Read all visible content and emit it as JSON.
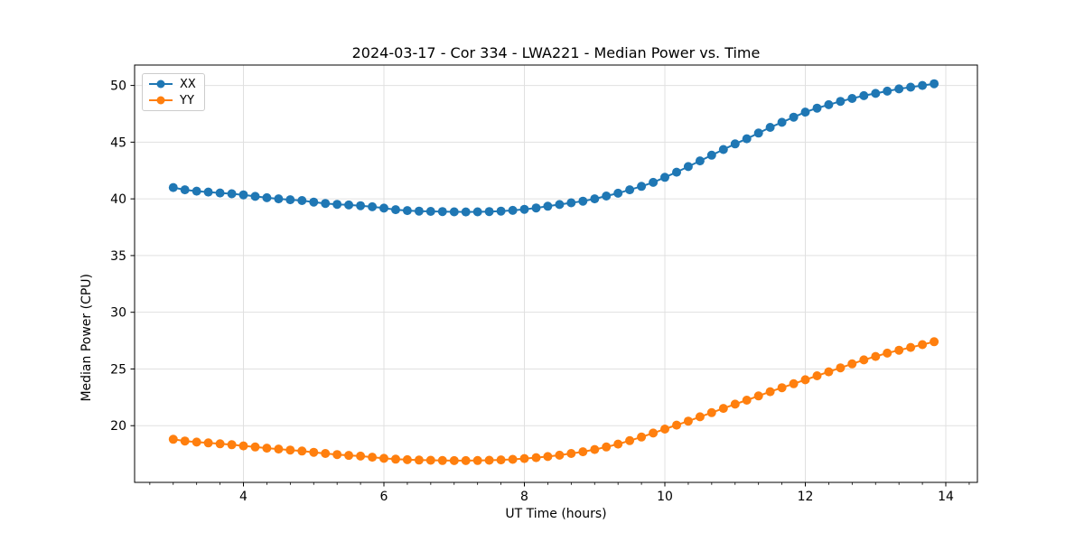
{
  "chart_data": {
    "type": "line",
    "title": "2024-03-17 - Cor 334 - LWA221 - Median Power vs. Time",
    "xlabel": "UT Time (hours)",
    "ylabel": "Median Power (CPU)",
    "xlim": [
      2.45,
      14.45
    ],
    "ylim": [
      15.0,
      51.8
    ],
    "x_ticks": [
      4,
      6,
      8,
      10,
      12,
      14
    ],
    "y_ticks": [
      20,
      25,
      30,
      35,
      40,
      45,
      50
    ],
    "x_minor_tick_step": 0.3333,
    "grid": true,
    "legend_position": "upper-left",
    "grid_color": "#e0e0e0",
    "x": [
      3.0,
      3.1667,
      3.3333,
      3.5,
      3.6667,
      3.8333,
      4.0,
      4.1667,
      4.3333,
      4.5,
      4.6667,
      4.8333,
      5.0,
      5.1667,
      5.3333,
      5.5,
      5.6667,
      5.8333,
      6.0,
      6.1667,
      6.3333,
      6.5,
      6.6667,
      6.8333,
      7.0,
      7.1667,
      7.3333,
      7.5,
      7.6667,
      7.8333,
      8.0,
      8.1667,
      8.3333,
      8.5,
      8.6667,
      8.8333,
      9.0,
      9.1667,
      9.3333,
      9.5,
      9.6667,
      9.8333,
      10.0,
      10.1667,
      10.3333,
      10.5,
      10.6667,
      10.8333,
      11.0,
      11.1667,
      11.3333,
      11.5,
      11.6667,
      11.8333,
      12.0,
      12.1667,
      12.3333,
      12.5,
      12.6667,
      12.8333,
      13.0,
      13.1667,
      13.3333,
      13.5,
      13.6667,
      13.8333
    ],
    "series": [
      {
        "name": "XX",
        "color": "#1f77b4",
        "values": [
          41.0,
          40.8,
          40.68,
          40.6,
          40.52,
          40.45,
          40.35,
          40.22,
          40.1,
          40.0,
          39.92,
          39.85,
          39.72,
          39.6,
          39.52,
          39.46,
          39.4,
          39.3,
          39.18,
          39.05,
          38.97,
          38.92,
          38.9,
          38.88,
          38.86,
          38.85,
          38.86,
          38.88,
          38.92,
          38.98,
          39.08,
          39.2,
          39.35,
          39.5,
          39.65,
          39.8,
          40.0,
          40.25,
          40.5,
          40.8,
          41.1,
          41.45,
          41.9,
          42.35,
          42.85,
          43.35,
          43.85,
          44.35,
          44.85,
          45.3,
          45.8,
          46.3,
          46.75,
          47.2,
          47.65,
          48.0,
          48.3,
          48.6,
          48.85,
          49.1,
          49.3,
          49.5,
          49.7,
          49.85,
          50.0,
          50.15
        ]
      },
      {
        "name": "YY",
        "color": "#ff7f0e",
        "values": [
          18.8,
          18.65,
          18.55,
          18.48,
          18.4,
          18.32,
          18.22,
          18.12,
          18.02,
          17.94,
          17.85,
          17.76,
          17.65,
          17.55,
          17.45,
          17.38,
          17.32,
          17.22,
          17.12,
          17.05,
          17.0,
          16.97,
          16.95,
          16.93,
          16.92,
          16.92,
          16.93,
          16.95,
          16.98,
          17.03,
          17.1,
          17.18,
          17.28,
          17.4,
          17.55,
          17.7,
          17.9,
          18.12,
          18.38,
          18.68,
          19.0,
          19.35,
          19.7,
          20.05,
          20.4,
          20.78,
          21.15,
          21.52,
          21.9,
          22.25,
          22.62,
          23.0,
          23.35,
          23.7,
          24.05,
          24.4,
          24.75,
          25.1,
          25.45,
          25.8,
          26.1,
          26.4,
          26.65,
          26.9,
          27.15,
          27.4
        ]
      }
    ]
  }
}
